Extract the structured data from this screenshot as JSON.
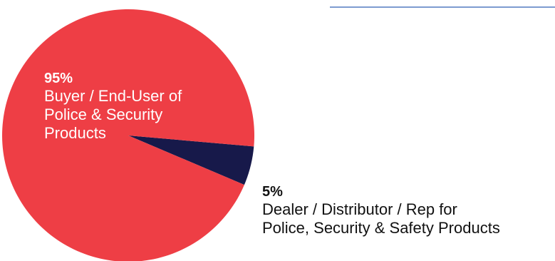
{
  "chart_data": {
    "type": "pie",
    "slices": [
      {
        "percent_label": "95%",
        "label_lines": [
          "Buyer / End-User of",
          "Police & Security",
          "Products"
        ],
        "value": 95,
        "color": "#ee3e45"
      },
      {
        "percent_label": "5%",
        "label_lines": [
          "Dealer / Distributor / Rep for",
          "Police, Security & Safety Products"
        ],
        "value": 5,
        "color": "#17194a"
      }
    ],
    "accent_line_color": "#7d9bd0"
  }
}
